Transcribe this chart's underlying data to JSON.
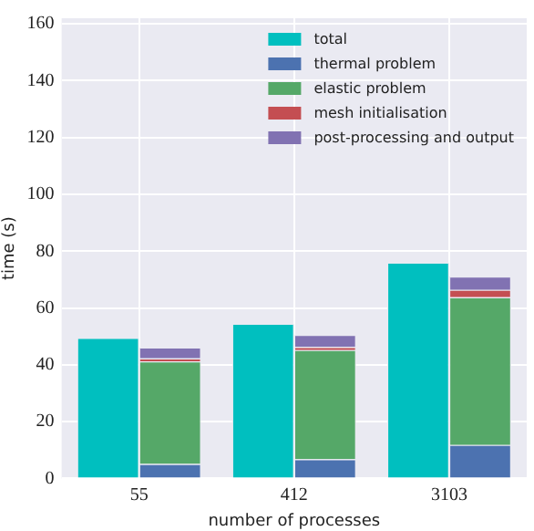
{
  "chart_data": {
    "type": "bar",
    "xlabel": "number of processes",
    "ylabel": "time (s)",
    "categories": [
      "55",
      "412",
      "3103"
    ],
    "series": [
      {
        "name": "total",
        "color": "#00bfbf",
        "values": [
          49.5,
          54.5,
          76
        ]
      },
      {
        "name": "thermal problem",
        "color": "#4c72b0",
        "base": [
          0,
          0,
          0
        ],
        "values": [
          5.1,
          6.8,
          11.8
        ]
      },
      {
        "name": "elastic problem",
        "color": "#55a868",
        "base": [
          5.1,
          6.8,
          11.8
        ],
        "values": [
          36.1,
          38.4,
          52
        ]
      },
      {
        "name": "mesh initialisation",
        "color": "#c44e52",
        "base": [
          41.2,
          45.2,
          63.8
        ],
        "values": [
          1.1,
          1.1,
          2.6
        ]
      },
      {
        "name": "post-processing and output",
        "color": "#8172b2",
        "base": [
          42.3,
          46.3,
          66.4
        ],
        "values": [
          3.8,
          4.2,
          4.7
        ]
      }
    ],
    "ylim": [
      0,
      162
    ],
    "yticks": [
      0,
      20,
      40,
      60,
      80,
      100,
      120,
      140,
      160
    ],
    "grid": true,
    "legend": "top right"
  }
}
